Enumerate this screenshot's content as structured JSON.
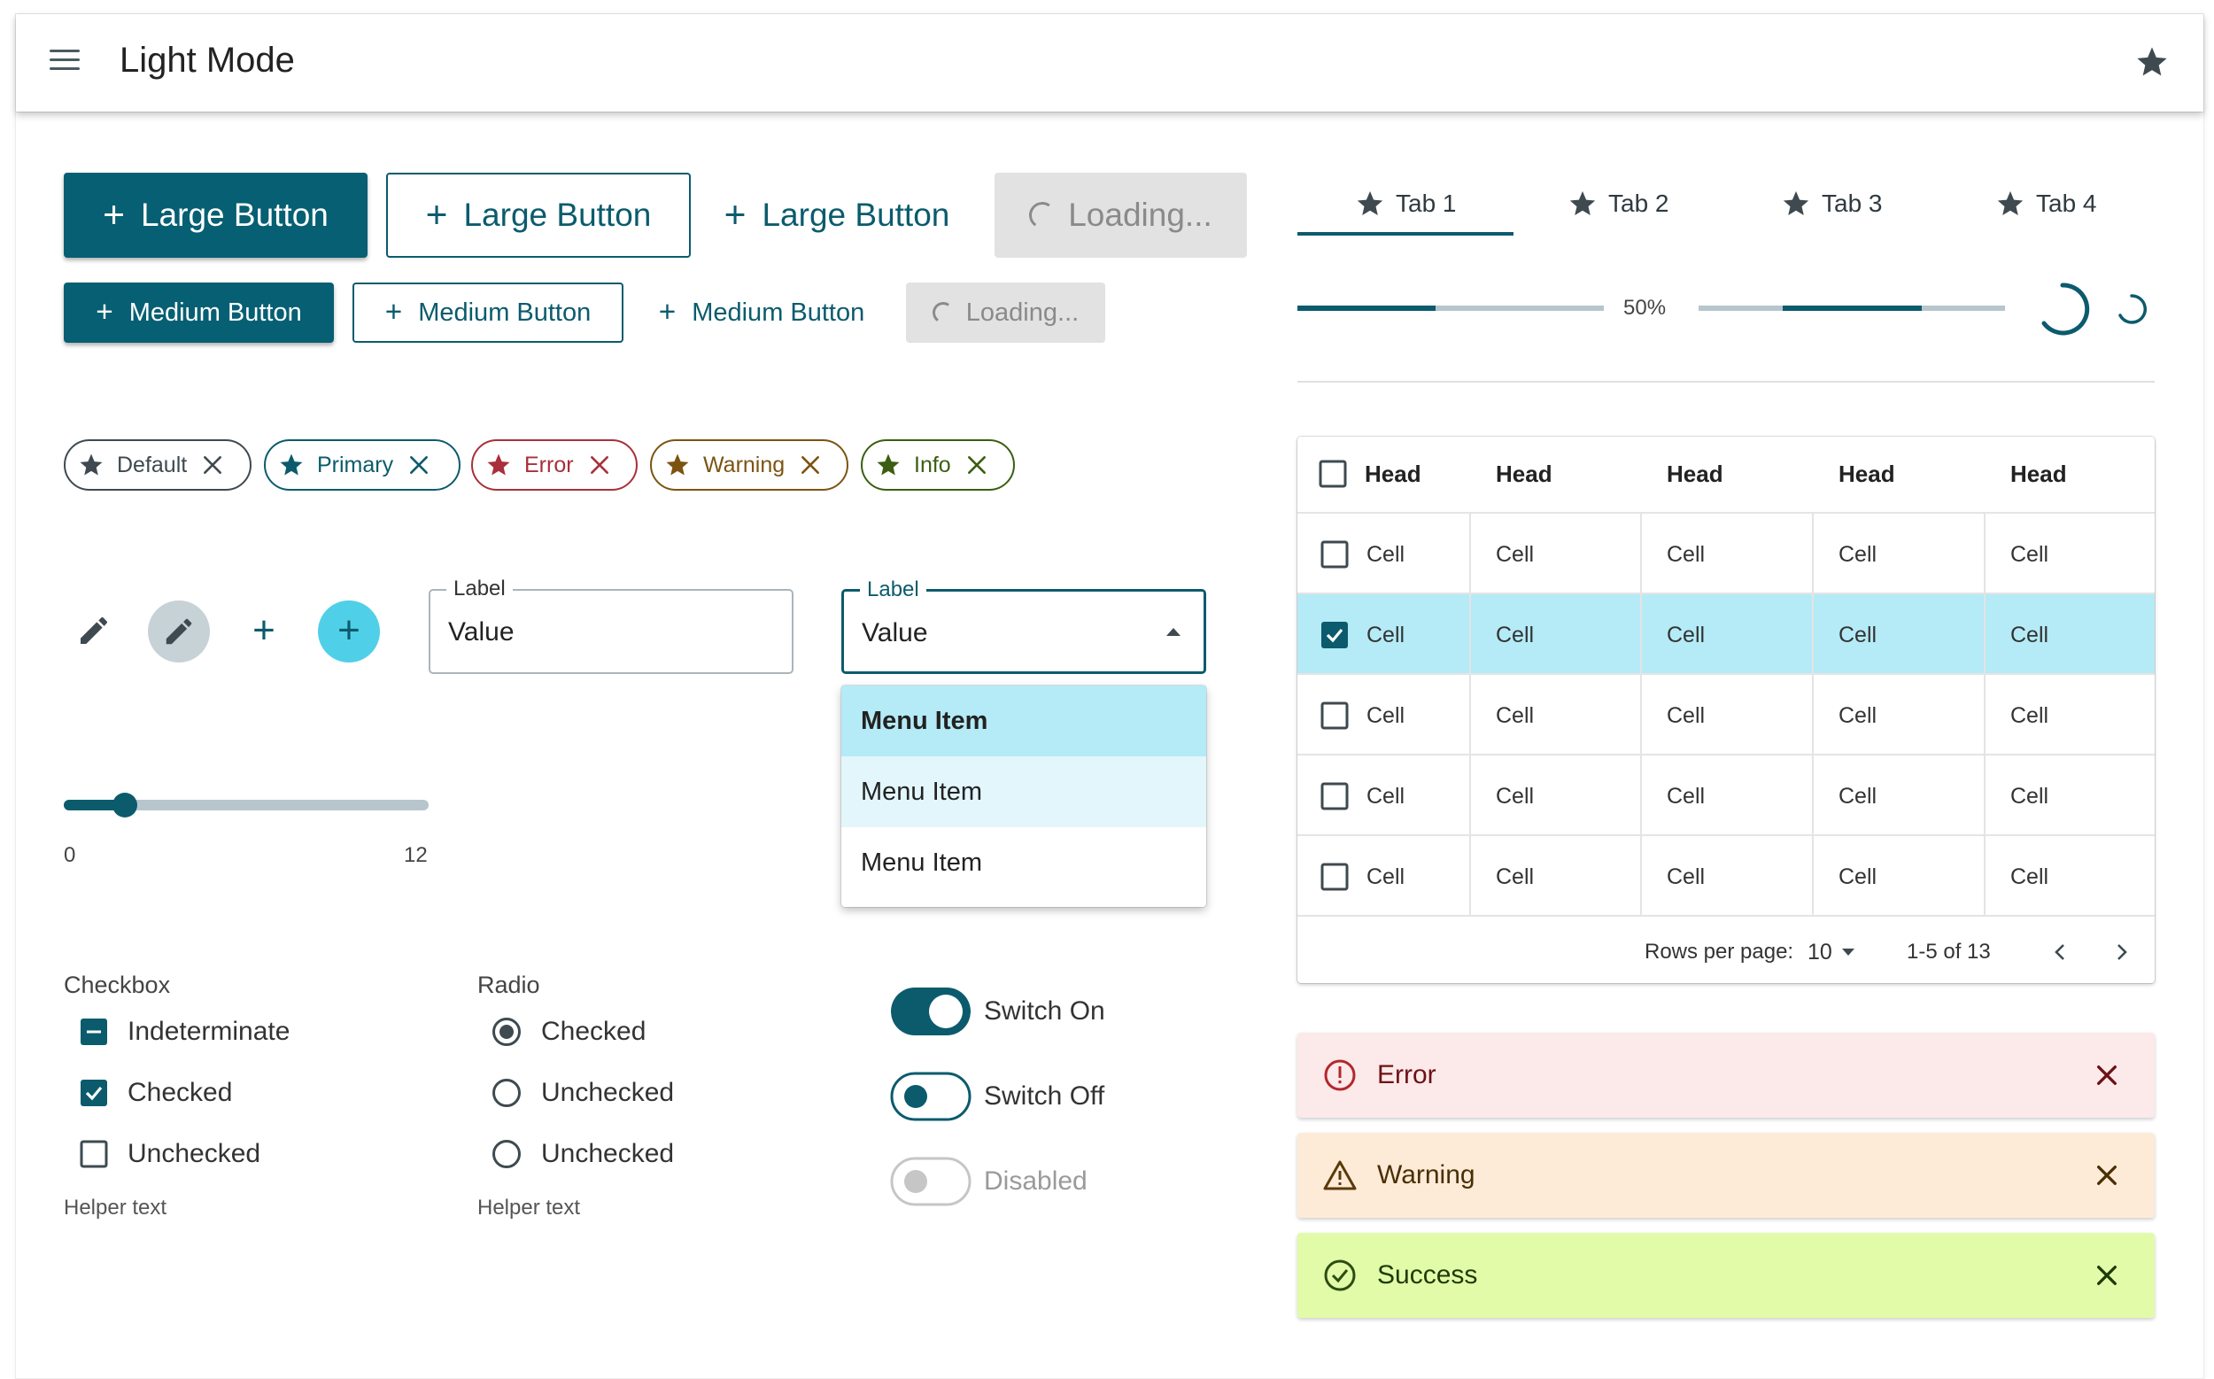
{
  "appbar": {
    "title": "Light Mode",
    "menu_icon": "hamburger-menu-icon",
    "action_icon": "star-icon"
  },
  "buttons": {
    "large": {
      "contained": "Large Button",
      "outlined": "Large Button",
      "text": "Large Button",
      "loading": "Loading..."
    },
    "medium": {
      "contained": "Medium Button",
      "outlined": "Medium Button",
      "text": "Medium Button",
      "loading": "Loading..."
    }
  },
  "chips": [
    {
      "label": "Default",
      "color": "#3e4a50"
    },
    {
      "label": "Primary",
      "color": "#0b5b6d"
    },
    {
      "label": "Error",
      "color": "#a8303a"
    },
    {
      "label": "Warning",
      "color": "#7c5410"
    },
    {
      "label": "Info",
      "color": "#3b5e12"
    }
  ],
  "text_field": {
    "label": "Label",
    "value": "Value"
  },
  "select": {
    "label": "Label",
    "value": "Value",
    "options": [
      "Menu Item",
      "Menu Item",
      "Menu Item"
    ]
  },
  "slider": {
    "min": "0",
    "max": "12",
    "value": 2
  },
  "checkbox_group": {
    "label": "Checkbox",
    "items": [
      {
        "label": "Indeterminate",
        "state": "indeterminate"
      },
      {
        "label": "Checked",
        "state": "checked"
      },
      {
        "label": "Unchecked",
        "state": "unchecked"
      }
    ],
    "helper": "Helper text"
  },
  "radio_group": {
    "label": "Radio",
    "items": [
      {
        "label": "Checked",
        "state": "checked"
      },
      {
        "label": "Unchecked",
        "state": "unchecked"
      },
      {
        "label": "Unchecked",
        "state": "unchecked"
      }
    ],
    "helper": "Helper text"
  },
  "switches": [
    {
      "label": "Switch On",
      "state": "on"
    },
    {
      "label": "Switch Off",
      "state": "off"
    },
    {
      "label": "Disabled",
      "state": "disabled"
    }
  ],
  "tabs": [
    {
      "label": "Tab 1",
      "selected": true
    },
    {
      "label": "Tab 2",
      "selected": false
    },
    {
      "label": "Tab 3",
      "selected": false
    },
    {
      "label": "Tab 4",
      "selected": false
    }
  ],
  "progress": {
    "determinate_percent": 50,
    "label": "50%"
  },
  "table": {
    "headers": [
      "Head",
      "Head",
      "Head",
      "Head",
      "Head"
    ],
    "rows": [
      {
        "cells": [
          "Cell",
          "Cell",
          "Cell",
          "Cell",
          "Cell"
        ],
        "selected": false
      },
      {
        "cells": [
          "Cell",
          "Cell",
          "Cell",
          "Cell",
          "Cell"
        ],
        "selected": true
      },
      {
        "cells": [
          "Cell",
          "Cell",
          "Cell",
          "Cell",
          "Cell"
        ],
        "selected": false
      },
      {
        "cells": [
          "Cell",
          "Cell",
          "Cell",
          "Cell",
          "Cell"
        ],
        "selected": false
      },
      {
        "cells": [
          "Cell",
          "Cell",
          "Cell",
          "Cell",
          "Cell"
        ],
        "selected": false
      }
    ],
    "pagination": {
      "rows_per_page_label": "Rows per page:",
      "rows_per_page": "10",
      "range": "1-5 of 13"
    }
  },
  "alerts": [
    {
      "severity": "error",
      "text": "Error",
      "bg": "#fce9e9",
      "fg": "#6b1216",
      "icon": "error-circle-icon"
    },
    {
      "severity": "warning",
      "text": "Warning",
      "bg": "#fdebd8",
      "fg": "#4a2f05",
      "icon": "warning-triangle-icon"
    },
    {
      "severity": "success",
      "text": "Success",
      "bg": "#e2fba8",
      "fg": "#1f3a09",
      "icon": "check-circle-icon"
    }
  ]
}
